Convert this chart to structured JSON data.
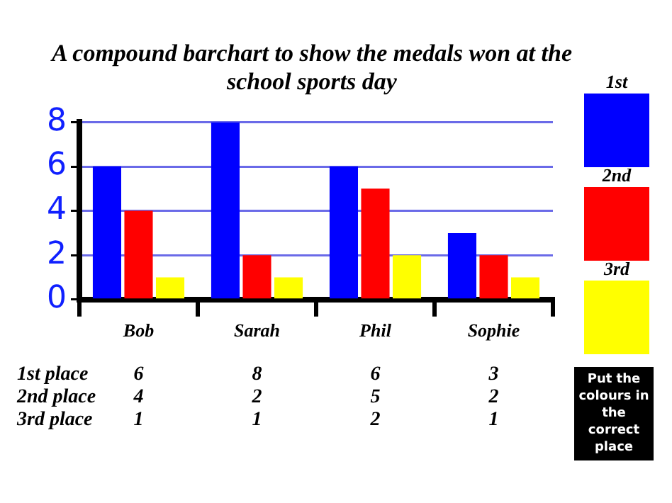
{
  "chart_data": {
    "type": "bar",
    "title": "A compound barchart to show the medals won at the school sports day",
    "categories": [
      "Bob",
      "Sarah",
      "Phil",
      "Sophie"
    ],
    "series": [
      {
        "name": "1st",
        "color": "#0000ff",
        "values": [
          6,
          8,
          6,
          3
        ]
      },
      {
        "name": "2nd",
        "color": "#ff0000",
        "values": [
          4,
          2,
          5,
          2
        ]
      },
      {
        "name": "3rd",
        "color": "#ffff00",
        "values": [
          1,
          1,
          2,
          1
        ]
      }
    ],
    "ylim": [
      0,
      8
    ],
    "yticks": [
      0,
      2,
      4,
      6,
      8
    ],
    "grid": "y",
    "legend": "right",
    "data_labels": true,
    "annotations": [
      "1st place",
      "2nd place",
      "3rd place",
      "Put the colours in the correct place"
    ]
  }
}
